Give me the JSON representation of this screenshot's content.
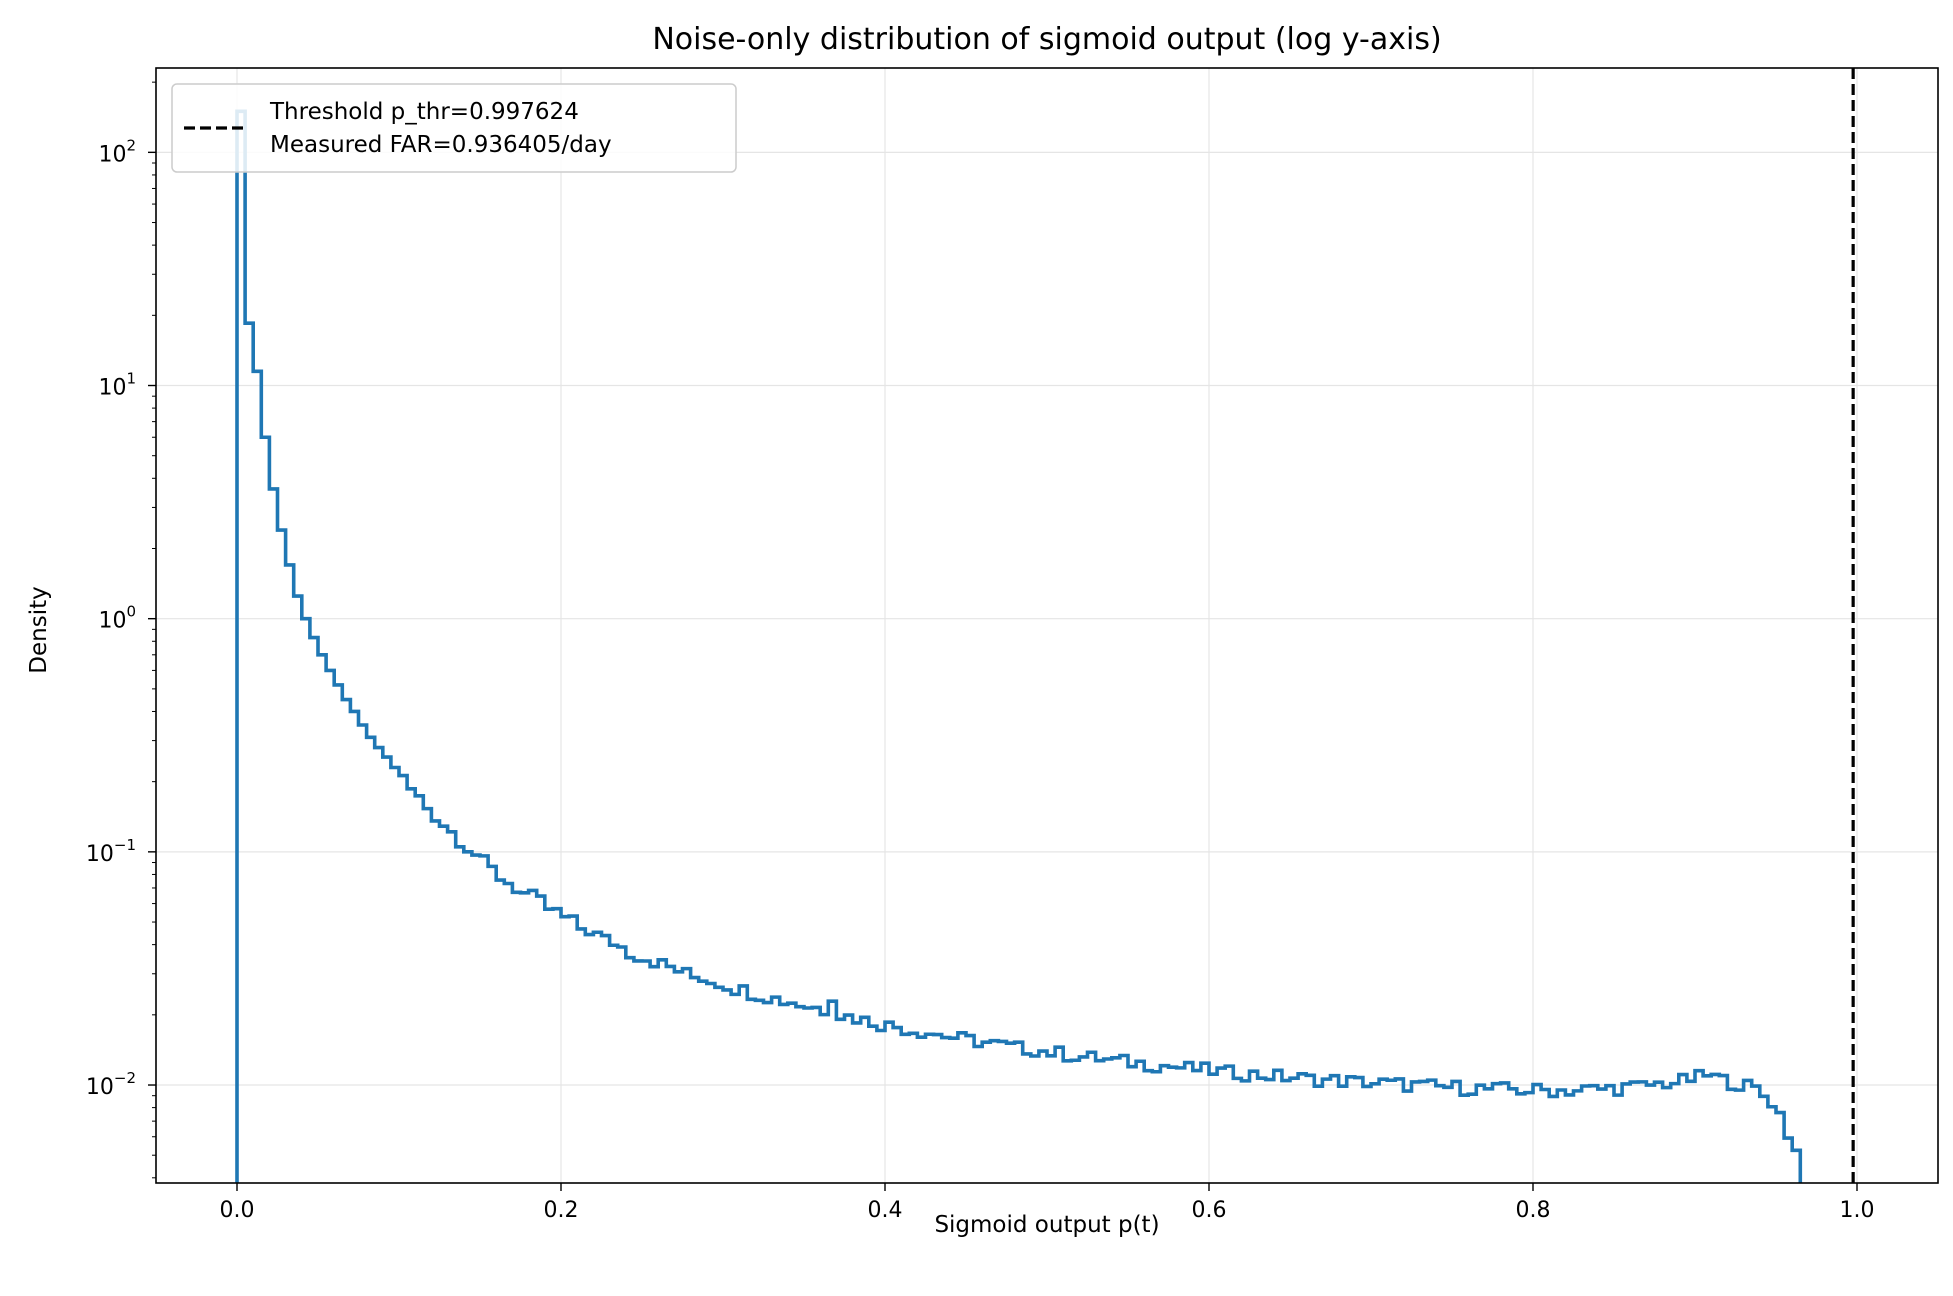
{
  "chart_data": {
    "type": "histogram",
    "title": "Noise-only distribution of sigmoid output (log y-axis)",
    "xlabel": "Sigmoid output p(t)",
    "ylabel": "Density",
    "xlim": [
      -0.05,
      1.05
    ],
    "ylim": [
      0.0038,
      230
    ],
    "yscale": "log",
    "grid": true,
    "x_ticks": [
      {
        "value": 0.0,
        "label": "0.0"
      },
      {
        "value": 0.2,
        "label": "0.2"
      },
      {
        "value": 0.4,
        "label": "0.4"
      },
      {
        "value": 0.6,
        "label": "0.6"
      },
      {
        "value": 0.8,
        "label": "0.8"
      },
      {
        "value": 1.0,
        "label": "1.0"
      }
    ],
    "y_ticks": [
      {
        "value": 0.01,
        "base": "10",
        "exp": "−2"
      },
      {
        "value": 0.1,
        "base": "10",
        "exp": "−1"
      },
      {
        "value": 1,
        "base": "10",
        "exp": "0"
      },
      {
        "value": 10,
        "base": "10",
        "exp": "1"
      },
      {
        "value": 100,
        "base": "10",
        "exp": "2"
      }
    ],
    "histogram": {
      "color": "#1f77b4",
      "bin_start": 0.0,
      "bin_width": 0.005,
      "values": [
        150,
        18.5,
        11.5,
        6.0,
        3.6,
        2.4,
        1.7,
        1.25,
        1.0,
        0.83,
        0.7,
        0.6,
        0.52,
        0.45,
        0.4,
        0.35,
        0.31,
        0.28,
        0.255,
        0.23,
        0.205,
        0.185,
        0.17,
        0.155,
        0.143,
        0.132,
        0.122,
        0.113,
        0.105,
        0.098,
        0.09,
        0.084,
        0.078,
        0.074,
        0.07,
        0.066,
        0.064,
        0.061,
        0.057,
        0.055,
        0.052,
        0.05,
        0.047,
        0.046,
        0.044,
        0.042,
        0.041,
        0.039,
        0.037,
        0.036,
        0.035,
        0.034,
        0.033,
        0.032,
        0.031,
        0.03,
        0.029,
        0.029,
        0.028,
        0.0275,
        0.0268,
        0.026,
        0.0255,
        0.025,
        0.0245,
        0.024,
        0.0235,
        0.023,
        0.0228,
        0.0222,
        0.0218,
        0.0215,
        0.021,
        0.0245,
        0.02,
        0.0197,
        0.0194,
        0.019,
        0.0187,
        0.0183,
        0.018,
        0.0178,
        0.0175,
        0.0172,
        0.017,
        0.0168,
        0.0165,
        0.0163,
        0.016,
        0.0158,
        0.0156,
        0.0154,
        0.0152,
        0.015,
        0.0148,
        0.0146,
        0.0144,
        0.0143,
        0.0142,
        0.014,
        0.0138,
        0.0137,
        0.0135,
        0.0134,
        0.0132,
        0.0131,
        0.013,
        0.0128,
        0.0127,
        0.0126,
        0.0125,
        0.0124,
        0.0123,
        0.0122,
        0.0121,
        0.012,
        0.0119,
        0.0118,
        0.0117,
        0.0116,
        0.0115,
        0.0114,
        0.0113,
        0.0113,
        0.0112,
        0.0111,
        0.011,
        0.011,
        0.0109,
        0.0108,
        0.0108,
        0.0107,
        0.0106,
        0.0106,
        0.0105,
        0.0105,
        0.0104,
        0.0104,
        0.0103,
        0.0103,
        0.0102,
        0.0102,
        0.0101,
        0.0101,
        0.01,
        0.01,
        0.0099,
        0.0099,
        0.0098,
        0.0098,
        0.0098,
        0.0097,
        0.0097,
        0.0097,
        0.0096,
        0.0096,
        0.0096,
        0.0096,
        0.0095,
        0.0095,
        0.0095,
        0.0095,
        0.0095,
        0.0095,
        0.0095,
        0.0095,
        0.0096,
        0.0096,
        0.0096,
        0.0097,
        0.0097,
        0.0098,
        0.0098,
        0.0099,
        0.01,
        0.0101,
        0.0102,
        0.0103,
        0.0104,
        0.0106,
        0.0108,
        0.011,
        0.0108,
        0.0105,
        0.0103,
        0.0101,
        0.0099,
        0.0096,
        0.009,
        0.0085,
        0.0075,
        0.0062,
        0.0052
      ],
      "jitter_amplitude": 0.07
    },
    "threshold": {
      "value": 0.997624,
      "color": "#000000",
      "style": "dashed"
    },
    "legend": {
      "placement": "upper left",
      "entries": [
        "Threshold p_thr=0.997624",
        "Measured FAR=0.936405/day"
      ]
    }
  }
}
